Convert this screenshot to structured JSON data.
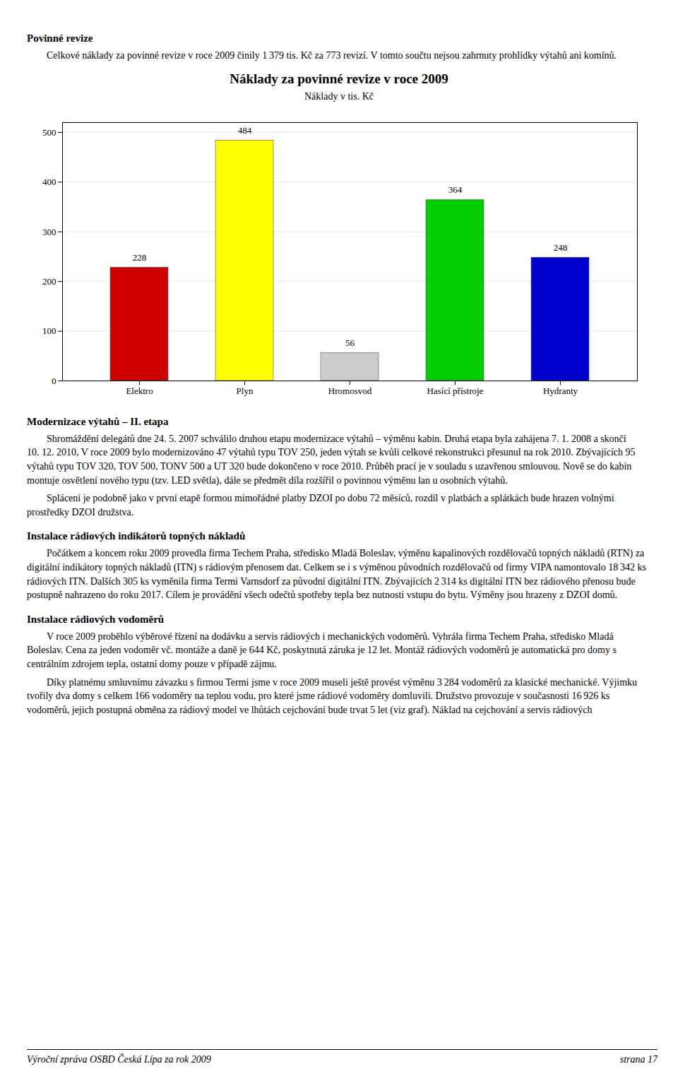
{
  "chart_data": {
    "type": "bar",
    "title": "Náklady za povinné revize v roce 2009",
    "subtitle": "Náklady v tis. Kč",
    "categories": [
      "Elektro",
      "Plyn",
      "Hromosvod",
      "Hasící přístroje",
      "Hydranty"
    ],
    "values": [
      228,
      484,
      56,
      364,
      248
    ],
    "colors": [
      "#cc0000",
      "#ffff00",
      "#cccccc",
      "#00cc00",
      "#0000cc"
    ],
    "ylim": [
      0,
      520
    ],
    "yticks": [
      0,
      100,
      200,
      300,
      400,
      500
    ],
    "grid": true,
    "data_labels": true
  },
  "texts_before": [
    {
      "heading": "Povinné revize"
    },
    {
      "paragraph": "Celkové náklady za povinné revize v roce 2009 činily 1 379 tis. Kč za 773 revizí. V tomto součtu nejsou zahrnuty prohlídky výtahů ani komínů."
    }
  ],
  "texts_after": [
    {
      "heading": "Modernizace výtahů – II. etapa"
    },
    {
      "paragraph": "Shromáždění delegátů dne 24. 5. 2007 schválilo druhou etapu modernizace výtahů – výměnu kabin. Druhá etapa byla zahájena 7. 1. 2008 a skončí 10. 12. 2010, V roce 2009 bylo modernizováno 47 výtahů typu TOV 250, jeden výtah se kvůli celkové rekonstrukci přesunul na rok 2010. Zbývajících 95 výtahů typu TOV 320, TOV 500, TONV 500 a UT 320 bude dokončeno v roce 2010. Průběh prací je v souladu s uzavřenou smlouvou. Nově se do kabin montuje osvětlení nového typu (tzv. LED světla), dále se předmět díla rozšířil o povinnou výměnu lan u osobních výtahů."
    },
    {
      "paragraph": "Splácení je podobně jako v první etapě formou mimořádné platby DZOI po dobu 72 měsíců, rozdíl v platbách a splátkách bude hrazen volnými prostředky DZOI družstva."
    },
    {
      "heading": "Instalace rádiových indikátorů topných nákladů"
    },
    {
      "paragraph": "Počátkem a koncem roku 2009 provedla firma Techem Praha, středisko Mladá Boleslav, výměnu kapalinových rozdělovačů topných nákladů (RTN) za digitální indikátory topných nákladů (ITN) s rádiovým přenosem dat. Celkem se i s výměnou původních rozdělovačů od firmy VIPA namontovalo 18 342 ks rádiových ITN. Dalších 305 ks vyměnila firma Termi Varnsdorf za původní digitální ITN. Zbývajících 2 314 ks digitální ITN bez rádiového přenosu bude postupně nahrazeno do roku 2017. Cílem je provádění všech odečtů spotřeby tepla bez nutnosti vstupu do bytu. Výměny jsou hrazeny z DZOI domů."
    },
    {
      "heading": "Instalace rádiových vodoměrů"
    },
    {
      "paragraph": "V roce 2009 proběhlo výběrové řízení na dodávku a servis rádiových i mechanických vodoměrů. Vyhrála firma Techem Praha, středisko Mladá Boleslav. Cena za jeden vodoměr vč. montáže a daně je 644 Kč, poskytnutá záruka je 12 let. Montáž rádiových vodoměrů je automatická pro domy s centrálním zdrojem tepla, ostatní domy pouze v případě zájmu."
    },
    {
      "paragraph": "Díky platnému smluvnímu závazku s firmou Termi jsme v roce 2009 museli ještě provést výměnu 3 284 vodoměrů za klasické mechanické. Výjimku tvořily dva domy s celkem 166 vodoměry na teplou vodu, pro které jsme rádiové vodoměry domluvili. Družstvo provozuje v současnosti 16 926 ks vodoměrů, jejich postupná obměna za rádiový model ve lhůtách cejchování bude trvat 5 let (viz graf). Náklad na cejchování a servis rádiových"
    }
  ],
  "footer_left": "Výroční zpráva OSBD Česká Lípa za rok 2009",
  "footer_right": "strana 17"
}
